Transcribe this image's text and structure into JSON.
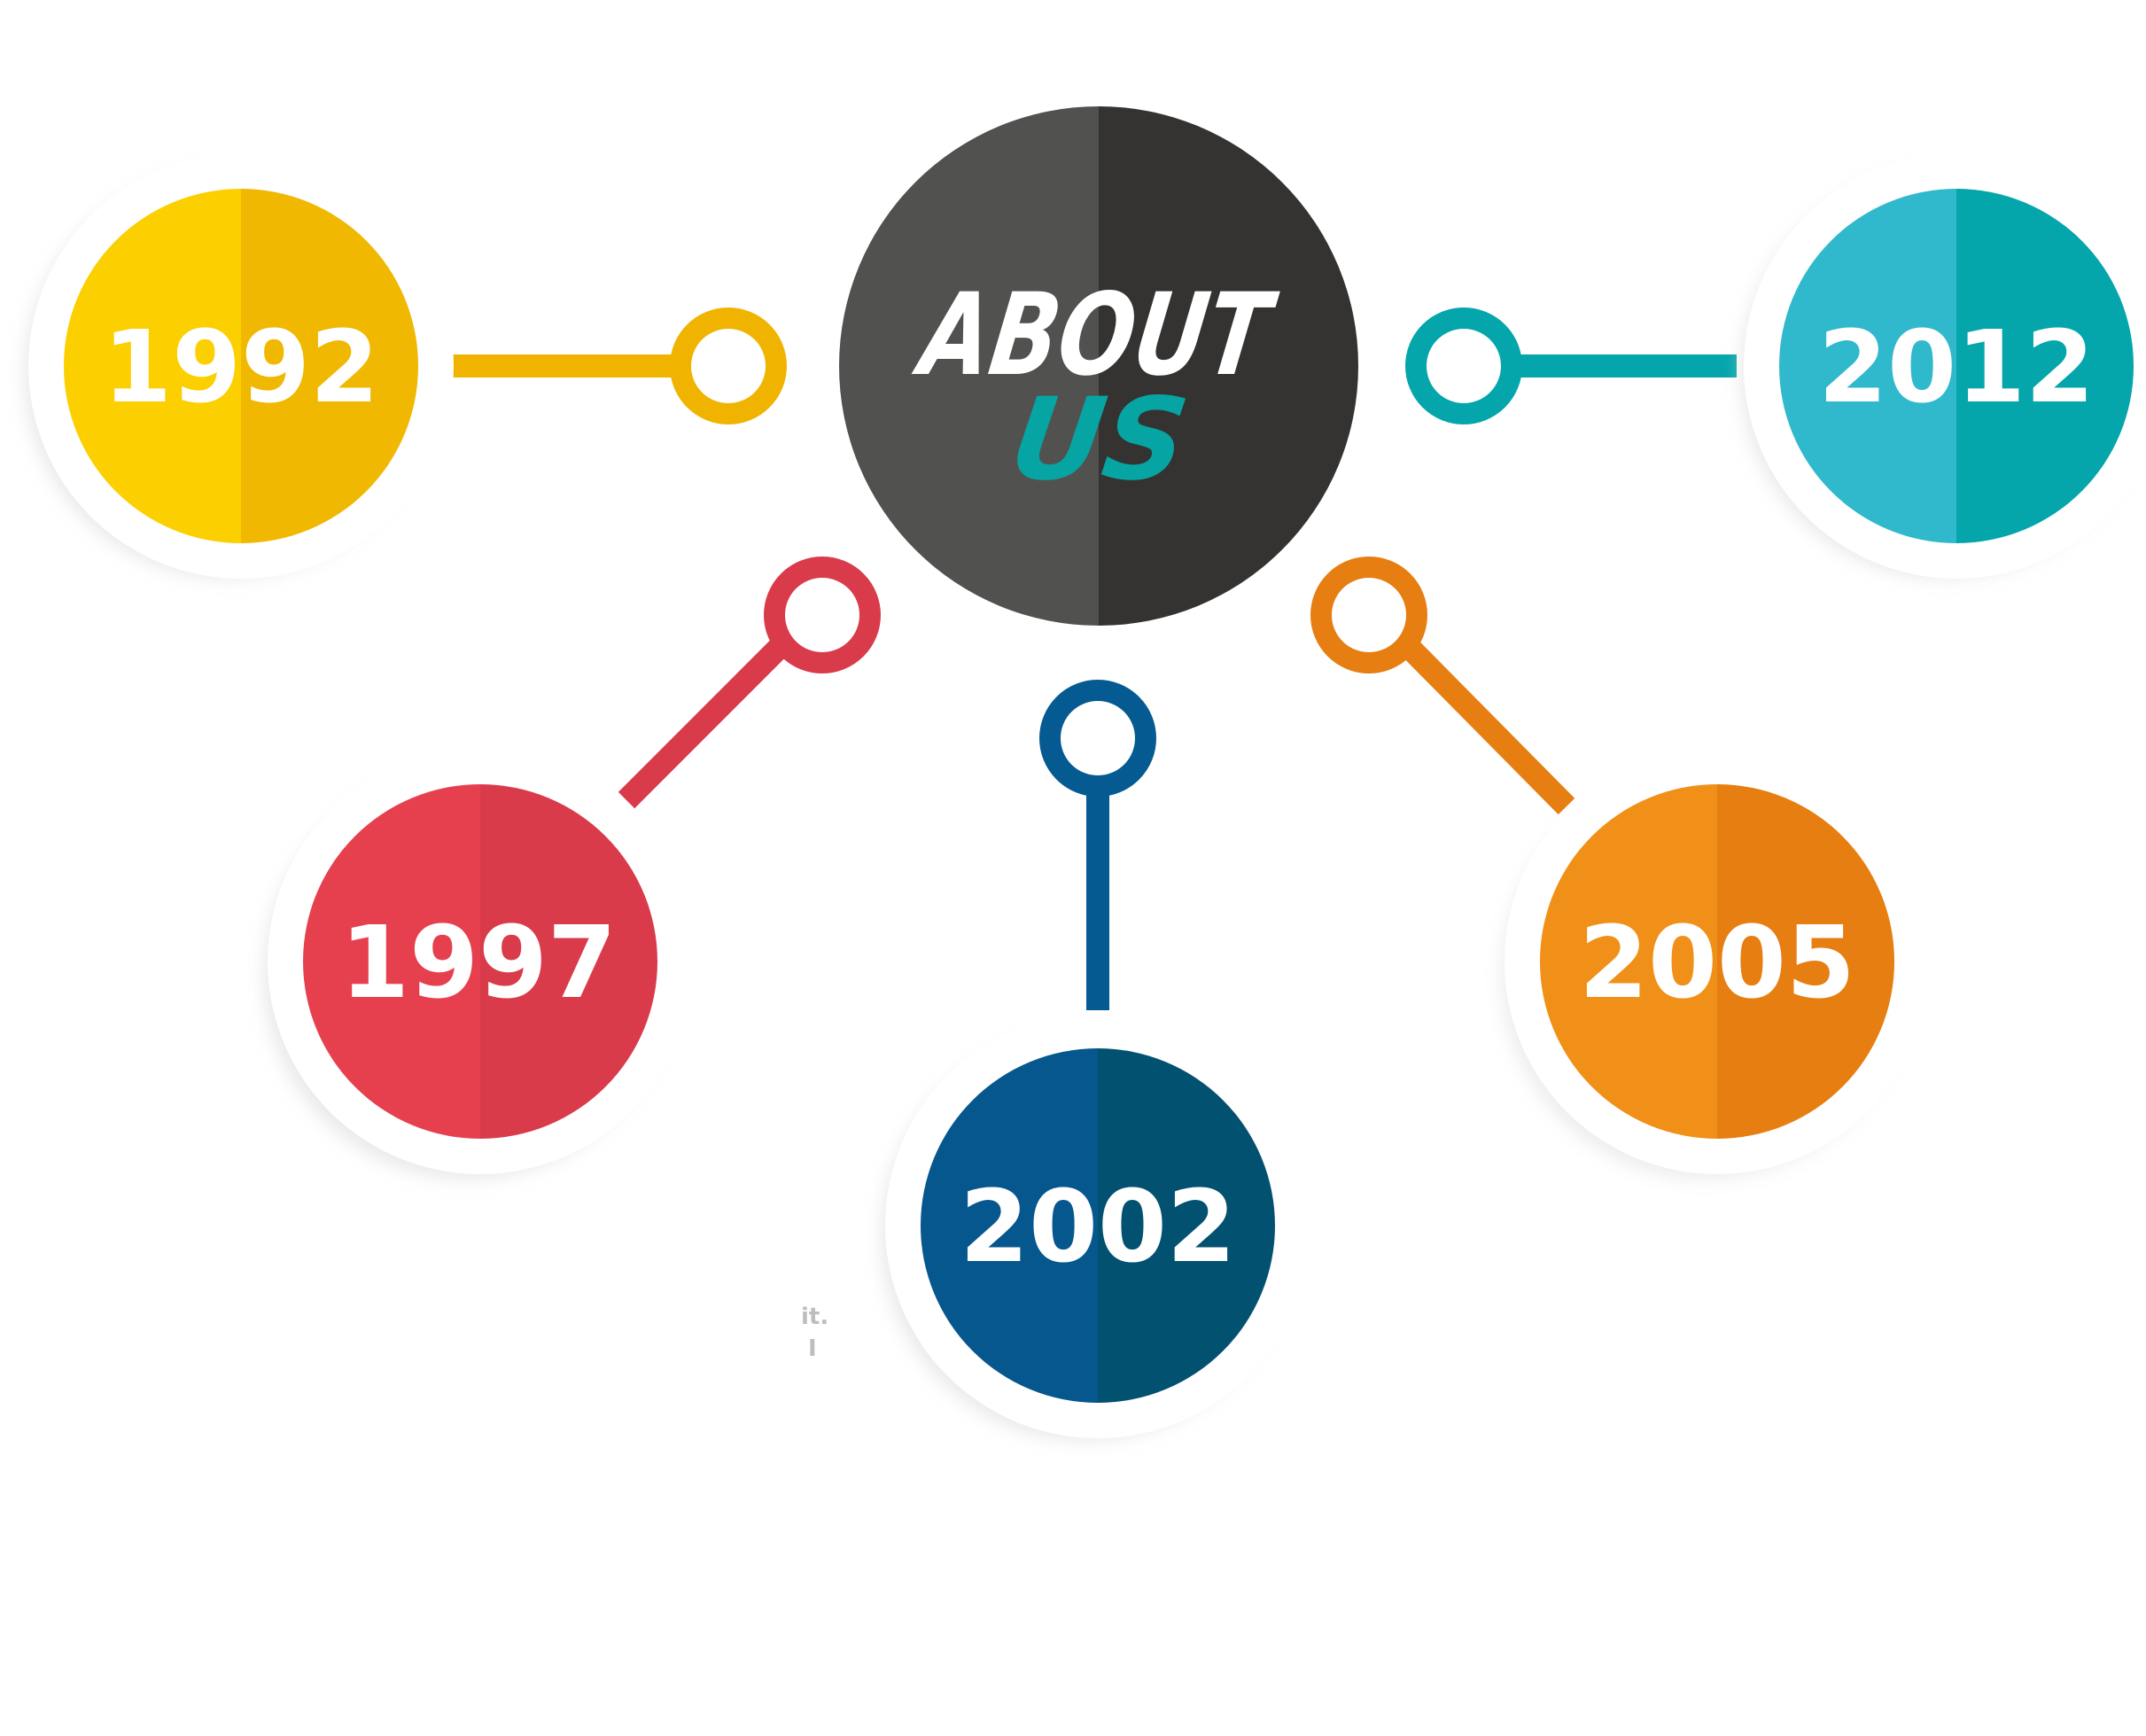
{
  "center": {
    "line1": "ABOUT",
    "line2": "US",
    "colors": {
      "left": "#51514f",
      "right": "#343331",
      "line1": "#ffffff",
      "line2": "#06a5a4"
    }
  },
  "milestones": [
    {
      "year": "1992",
      "colors": {
        "left": "#fccf00",
        "right": "#f0b800",
        "connector": "#f0b400"
      }
    },
    {
      "year": "1997",
      "colors": {
        "left": "#e6404e",
        "right": "#d93b4b",
        "connector": "#d93b4b"
      }
    },
    {
      "year": "2002",
      "colors": {
        "left": "#06578e",
        "right": "#035171",
        "connector": "#055a92"
      }
    },
    {
      "year": "2005",
      "colors": {
        "left": "#f19018",
        "right": "#e67e11",
        "connector": "#e67e11"
      }
    },
    {
      "year": "2012",
      "colors": {
        "left": "#30b8cc",
        "right": "#04a5ab",
        "connector": "#04a5ab"
      }
    }
  ],
  "stray_text": [
    "it.",
    "I"
  ]
}
